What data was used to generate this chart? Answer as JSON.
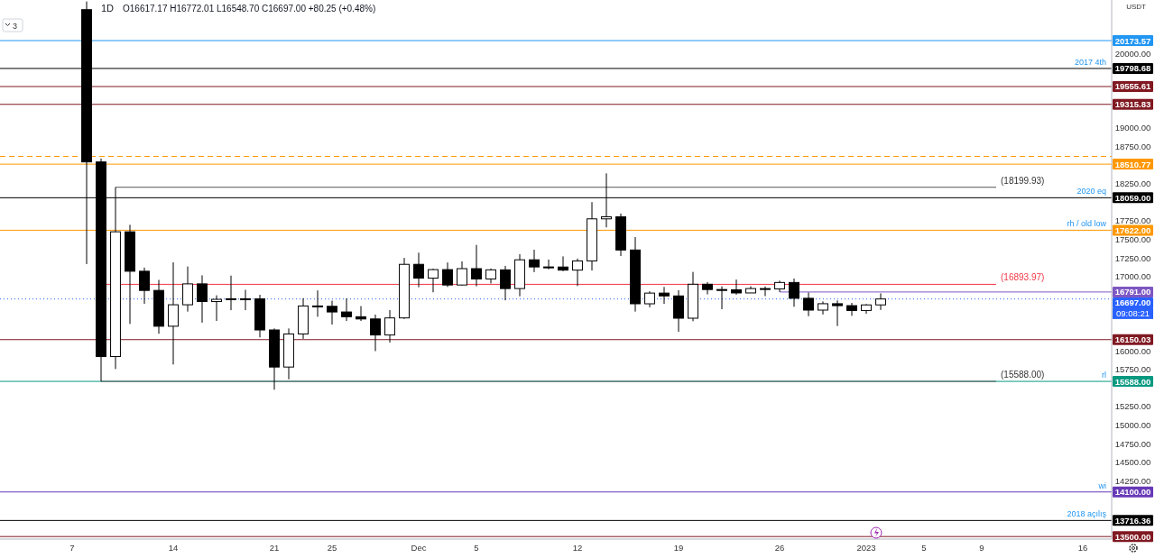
{
  "chart_data": {
    "type": "candlestick",
    "title": "1D",
    "ylabel": "USDT",
    "annotations": [
      "O16617.17 H16772.01 L16548.70 C16697.00 +80.25 (+0.48%)",
      "09:08:21",
      "3"
    ],
    "xlim": [
      "2022-11-02",
      "2023-01-18"
    ],
    "xticks": [
      {
        "value": "2022-11-07",
        "label": "7"
      },
      {
        "value": "2022-11-14",
        "label": "14"
      },
      {
        "value": "2022-11-21",
        "label": "21"
      },
      {
        "value": "2022-11-25",
        "label": "25"
      },
      {
        "value": "2022-12-01",
        "label": "Dec"
      },
      {
        "value": "2022-12-05",
        "label": "5"
      },
      {
        "value": "2022-12-12",
        "label": "12"
      },
      {
        "value": "2022-12-19",
        "label": "19"
      },
      {
        "value": "2022-12-26",
        "label": "26"
      },
      {
        "value": "2023-01-01",
        "label": "2023"
      },
      {
        "value": "2023-01-05",
        "label": "5"
      },
      {
        "value": "2023-01-09",
        "label": "9"
      },
      {
        "value": "2023-01-16",
        "label": "16"
      }
    ],
    "ylim": [
      13466,
      20720
    ],
    "yticks": [
      {
        "value": 20173.57,
        "label": "20173.57"
      },
      {
        "value": 19798.68,
        "label": "19798.68"
      },
      {
        "value": 19555.61,
        "label": "19555.61"
      },
      {
        "value": 19315.83,
        "label": "19315.83"
      },
      {
        "value": 18510.77,
        "label": "18510.77"
      },
      {
        "value": 18059,
        "label": "18059.00"
      },
      {
        "value": 17622,
        "label": "17622.00"
      },
      {
        "value": 16791,
        "label": "16791.00"
      },
      {
        "value": 16697,
        "label": "16697.00"
      },
      {
        "value": 16150.03,
        "label": "16150.03"
      },
      {
        "value": 15588,
        "label": "15588.00"
      },
      {
        "value": 14100,
        "label": "14100.00"
      },
      {
        "value": 13716.36,
        "label": "13716.36"
      },
      {
        "value": 13500,
        "label": "13500.00"
      },
      {
        "value": 20000,
        "label": "20000.00"
      },
      {
        "value": 19000,
        "label": "19000.00"
      },
      {
        "value": 18750,
        "label": "18750.00"
      },
      {
        "value": 18250,
        "label": "18250.00"
      },
      {
        "value": 17750,
        "label": "17750.00"
      },
      {
        "value": 17500,
        "label": "17500.00"
      },
      {
        "value": 17250,
        "label": "17250.00"
      },
      {
        "value": 17000,
        "label": "17000.00"
      },
      {
        "value": 16000,
        "label": "16000.00"
      },
      {
        "value": 15750,
        "label": "15750.00"
      },
      {
        "value": 15250,
        "label": "15250.00"
      },
      {
        "value": 15000,
        "label": "15000.00"
      },
      {
        "value": 14750,
        "label": "14750.00"
      },
      {
        "value": 14500,
        "label": "14500.00"
      },
      {
        "value": 14250,
        "label": "14250.00"
      }
    ],
    "series": [
      {
        "color": "#000000",
        "x": [
          "2022-11-08",
          "2022-11-09",
          "2022-11-10",
          "2022-11-11",
          "2022-11-12",
          "2022-11-13",
          "2022-11-14",
          "2022-11-15",
          "2022-11-16",
          "2022-11-17",
          "2022-11-18",
          "2022-11-19",
          "2022-11-20",
          "2022-11-21",
          "2022-11-22",
          "2022-11-23",
          "2022-11-24",
          "2022-11-25",
          "2022-11-26",
          "2022-11-27",
          "2022-11-28",
          "2022-11-29",
          "2022-11-30",
          "2022-12-01",
          "2022-12-02",
          "2022-12-03",
          "2022-12-04",
          "2022-12-05",
          "2022-12-06",
          "2022-12-07",
          "2022-12-08",
          "2022-12-09",
          "2022-12-10",
          "2022-12-11",
          "2022-12-12",
          "2022-12-13",
          "2022-12-14",
          "2022-12-15",
          "2022-12-16",
          "2022-12-17",
          "2022-12-18",
          "2022-12-19",
          "2022-12-20",
          "2022-12-21",
          "2022-12-22",
          "2022-12-23",
          "2022-12-24",
          "2022-12-25",
          "2022-12-26",
          "2022-12-27",
          "2022-12-28",
          "2022-12-29",
          "2022-12-30",
          "2022-12-31",
          "2023-01-01",
          "2023-01-02"
        ],
        "ohlc": [
          [
            20590,
            20700,
            17166,
            18541
          ],
          [
            18541,
            18587,
            15588,
            15922
          ],
          [
            15922,
            18199.93,
            15754,
            17601
          ],
          [
            17601,
            17695,
            16361,
            17070
          ],
          [
            17070,
            17119,
            16631,
            16812
          ],
          [
            16812,
            16954,
            16229,
            16330
          ],
          [
            16330,
            17190,
            15815,
            16619
          ],
          [
            16619,
            17134,
            16527,
            16900
          ],
          [
            16900,
            17015,
            16378,
            16662
          ],
          [
            16662,
            16746,
            16401,
            16692
          ],
          [
            16692,
            17011,
            16546,
            16700
          ],
          [
            16700,
            16820,
            16546,
            16699
          ],
          [
            16699,
            16753,
            16180,
            16280
          ],
          [
            16280,
            16300,
            15476,
            15781
          ],
          [
            15781,
            16300,
            15616,
            16226
          ],
          [
            16226,
            16708,
            16160,
            16603
          ],
          [
            16603,
            16812,
            16458,
            16598
          ],
          [
            16598,
            16674,
            16353,
            16522
          ],
          [
            16522,
            16705,
            16400,
            16458
          ],
          [
            16458,
            16601,
            16401,
            16428
          ],
          [
            16428,
            16487,
            15995,
            16212
          ],
          [
            16212,
            16548,
            16110,
            16442
          ],
          [
            16442,
            17250,
            16428,
            17163
          ],
          [
            17163,
            17320,
            16855,
            16977
          ],
          [
            16977,
            17105,
            16787,
            17092
          ],
          [
            17092,
            17188,
            16858,
            16885
          ],
          [
            16885,
            17202,
            16878,
            17105
          ],
          [
            17105,
            17424,
            16867,
            16966
          ],
          [
            16966,
            17107,
            16906,
            17089
          ],
          [
            17089,
            17142,
            16679,
            16837
          ],
          [
            16837,
            17299,
            16733,
            17224
          ],
          [
            17224,
            17360,
            17058,
            17128
          ],
          [
            17128,
            17227,
            17096,
            17127
          ],
          [
            17127,
            17270,
            17071,
            17085
          ],
          [
            17085,
            17241,
            16871,
            17209
          ],
          [
            17209,
            18000,
            17080,
            17775
          ],
          [
            17775,
            18387,
            17660,
            17803
          ],
          [
            17803,
            17846,
            17275,
            17356
          ],
          [
            17356,
            17530,
            16527,
            16632
          ],
          [
            16632,
            16800,
            16585,
            16776
          ],
          [
            16776,
            16859,
            16630,
            16738
          ],
          [
            16738,
            16815,
            16256,
            16438
          ],
          [
            16438,
            17061,
            16397,
            16895
          ],
          [
            16895,
            16925,
            16759,
            16824
          ],
          [
            16824,
            16868,
            16559,
            16821
          ],
          [
            16821,
            16958,
            16755,
            16778
          ],
          [
            16778,
            16868,
            16778,
            16837
          ],
          [
            16837,
            16866,
            16735,
            16832
          ],
          [
            16832,
            16944,
            16791,
            16919
          ],
          [
            16919,
            16972,
            16592,
            16706
          ],
          [
            16706,
            16785,
            16465,
            16547
          ],
          [
            16547,
            16664,
            16488,
            16633
          ],
          [
            16633,
            16677,
            16333,
            16607
          ],
          [
            16607,
            16644,
            16470,
            16542
          ],
          [
            16542,
            16628,
            16499,
            16617
          ],
          [
            16617.17,
            16772.01,
            16548.7,
            16697
          ]
        ]
      },
      {
        "type": "line",
        "color": "#ff9800",
        "line_style": "dashed",
        "x": [
          "2022-11-02",
          "2023-01-18"
        ],
        "values": [
          18615,
          18615
        ]
      },
      {
        "type": "line",
        "color": "#555555",
        "x": [
          "2022-11-10",
          "2023-01-10"
        ],
        "values": [
          18199.93,
          18199.93
        ],
        "value_labels": [
          null,
          "(18199.93)"
        ]
      },
      {
        "type": "line",
        "color": "#f23645",
        "x": [
          "2022-11-09T08:00",
          "2023-01-10"
        ],
        "values": [
          16893.97,
          16893.97
        ],
        "value_labels": [
          null,
          "(16893.97)"
        ]
      },
      {
        "type": "line",
        "color": "#555555",
        "x": [
          "2022-11-09",
          "2023-01-10"
        ],
        "values": [
          15588,
          15588
        ],
        "value_labels": [
          null,
          "(15588.00)"
        ]
      },
      {
        "type": "line",
        "color": "#7e57c2",
        "x": [
          "2022-12-26",
          "2023-01-18"
        ],
        "values": [
          16791,
          16791
        ]
      }
    ],
    "ref_lines": [
      {
        "axis": "y",
        "value": 20173.57,
        "color": "#2196f3",
        "label": null
      },
      {
        "axis": "y",
        "value": 19798.68,
        "color": "#000000",
        "label": "2017 4th"
      },
      {
        "axis": "y",
        "value": 19555.61,
        "color": "#801922",
        "label": null
      },
      {
        "axis": "y",
        "value": 19315.83,
        "color": "#801922",
        "label": null
      },
      {
        "axis": "y",
        "value": 18510.77,
        "color": "#ff9800",
        "label": null
      },
      {
        "axis": "y",
        "value": 18059,
        "color": "#000000",
        "label": "2020 eq"
      },
      {
        "axis": "y",
        "value": 17622,
        "color": "#ff9800",
        "label": "rh / old low"
      },
      {
        "axis": "y",
        "value": 16697,
        "color": "#2962ff",
        "line_style": "dotted",
        "label": null
      },
      {
        "axis": "y",
        "value": 16150.03,
        "color": "#801922",
        "label": null
      },
      {
        "axis": "y",
        "value": 15588,
        "color": "#089981",
        "label": "rl"
      },
      {
        "axis": "y",
        "value": 14100,
        "color": "#673ab7",
        "label": "wi"
      },
      {
        "axis": "y",
        "value": 13716.36,
        "color": "#000000",
        "label": "2018 açılış"
      },
      {
        "axis": "y",
        "value": 13500,
        "color": "#801922",
        "label": null
      }
    ]
  }
}
